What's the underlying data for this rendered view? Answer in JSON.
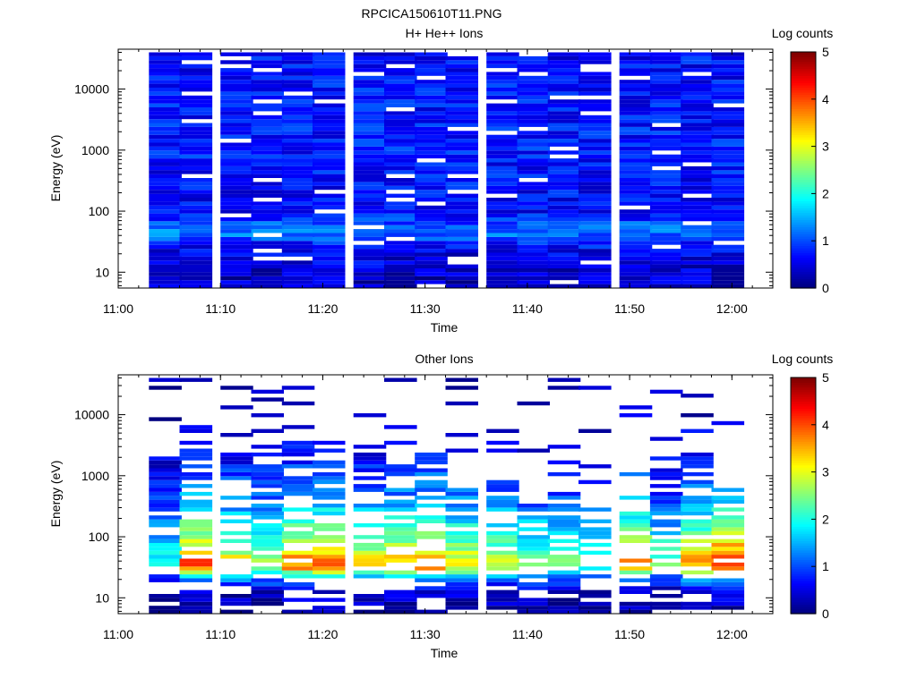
{
  "chart_data": {
    "title": "RPCICA150610T11.PNG",
    "panels": [
      {
        "type": "heatmap",
        "title": "H+ He++ Ions",
        "xlabel": "Time",
        "ylabel": "Energy (eV)",
        "y_scale": "log",
        "ylim": [
          5.5,
          45000
        ],
        "x_ticks": [
          "11:00",
          "11:10",
          "11:20",
          "11:30",
          "11:40",
          "11:50",
          "12:00"
        ],
        "y_ticks": [
          "10",
          "100",
          "1000",
          "10000"
        ],
        "colorbar": {
          "label": "Log counts",
          "range": [
            0,
            5
          ],
          "ticks": [
            "0",
            "1",
            "2",
            "3",
            "4",
            "5"
          ]
        },
        "time_bins": [
          "11:03",
          "11:06",
          "11:10",
          "11:13",
          "11:16",
          "11:19",
          "11:23",
          "11:26",
          "11:29",
          "11:32",
          "11:36",
          "11:39",
          "11:42",
          "11:45",
          "11:49",
          "11:52",
          "11:55",
          "11:58"
        ],
        "energy_range": [
          5.5,
          40000
        ],
        "profile_log_counts": {
          "energy": [
            8,
            12,
            20,
            30,
            45,
            70,
            100,
            200,
            500,
            1000,
            5000,
            10000,
            30000
          ],
          "level": [
            0.35,
            0.45,
            0.5,
            0.75,
            1.3,
            0.9,
            0.6,
            0.65,
            0.7,
            0.75,
            0.7,
            0.7,
            0.65
          ]
        },
        "gap_fraction": 0.06
      },
      {
        "type": "heatmap",
        "title": "Other Ions",
        "xlabel": "Time",
        "ylabel": "Energy (eV)",
        "y_scale": "log",
        "ylim": [
          5.5,
          45000
        ],
        "x_ticks": [
          "11:00",
          "11:10",
          "11:20",
          "11:30",
          "11:40",
          "11:50",
          "12:00"
        ],
        "y_ticks": [
          "10",
          "100",
          "1000",
          "10000"
        ],
        "colorbar": {
          "label": "Log counts",
          "range": [
            0,
            5
          ],
          "ticks": [
            "0",
            "1",
            "2",
            "3",
            "4",
            "5"
          ]
        },
        "time_bins": [
          "11:03",
          "11:06",
          "11:10",
          "11:13",
          "11:16",
          "11:19",
          "11:23",
          "11:26",
          "11:29",
          "11:32",
          "11:36",
          "11:39",
          "11:42",
          "11:45",
          "11:49",
          "11:52",
          "11:55",
          "11:58"
        ],
        "energy_range": [
          5.5,
          40000
        ],
        "profile_log_counts": {
          "energy": [
            8,
            12,
            17,
            22,
            30,
            40,
            55,
            80,
            120,
            200,
            400,
            1000,
            3000,
            10000,
            30000
          ],
          "level": [
            0.25,
            0.4,
            1.1,
            1.6,
            3.5,
            3.8,
            3.2,
            2.8,
            2.4,
            2.0,
            1.5,
            1.0,
            0.6,
            0.3,
            0.2
          ]
        },
        "column_peak_log_counts": [
          2.2,
          4.2,
          3.4,
          3.0,
          4.0,
          4.0,
          3.4,
          3.6,
          4.1,
          3.4,
          3.2,
          2.8,
          2.6,
          2.4,
          3.8,
          2.7,
          3.8,
          4.6
        ],
        "column_top_energy": [
          2500,
          3500,
          2500,
          3000,
          4000,
          4000,
          3000,
          1500,
          3000,
          600,
          900,
          350,
          500,
          300,
          220,
          1500,
          2200,
          600
        ],
        "gap_fraction": 0.32
      }
    ]
  }
}
